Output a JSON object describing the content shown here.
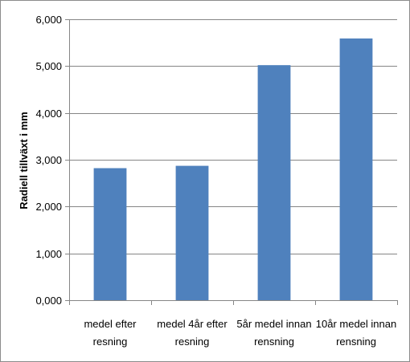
{
  "chart_data": {
    "type": "bar",
    "categories": [
      [
        "medel efter",
        "resning"
      ],
      [
        "medel 4år efter",
        "resning"
      ],
      [
        "5år medel innan",
        "rensning"
      ],
      [
        "10år medel innan",
        "rensning"
      ]
    ],
    "values": [
      2.82,
      2.87,
      5.02,
      5.59
    ],
    "ylabel": "Radiell tillväxt i mm",
    "ylim": [
      0,
      6
    ],
    "yticks": [
      "0,000",
      "1,000",
      "2,000",
      "3,000",
      "4,000",
      "5,000",
      "6,000"
    ],
    "grid": true,
    "legend": "none",
    "colors": {
      "bar": "#4f81bd",
      "grid": "#868686",
      "axis": "#868686"
    }
  }
}
